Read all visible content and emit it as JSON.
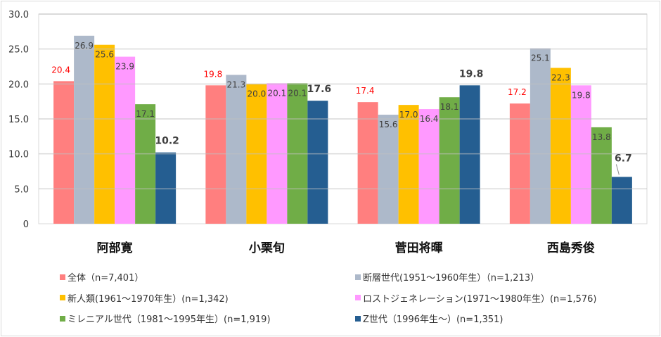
{
  "chart_data": {
    "type": "bar",
    "categories": [
      "阿部寛",
      "小栗旬",
      "菅田将暉",
      "西島秀俊"
    ],
    "ylim": [
      0,
      30
    ],
    "yticks": [
      "0",
      "5.0",
      "10.0",
      "15.0",
      "20.0",
      "25.0",
      "30.0"
    ],
    "grid": true,
    "legend_position": "bottom",
    "series": [
      {
        "name": "全体（n=7,401）",
        "color": "#ff7f7f",
        "label_color": "#ff0000",
        "values": [
          20.4,
          19.8,
          17.4,
          17.2
        ]
      },
      {
        "name": "断層世代(1951～1960年生）（n=1,213）",
        "color": "#adb9ca",
        "label_color": "#404040",
        "values": [
          26.9,
          21.3,
          15.6,
          25.1
        ]
      },
      {
        "name": "新人類(1961～1970年生）(n=1,342)",
        "color": "#ffc000",
        "label_color": "#404040",
        "values": [
          25.6,
          20.0,
          17.0,
          22.3
        ]
      },
      {
        "name": "ロストジェネレーション(1971～1980年生）(n=1,576)",
        "color": "#ff99ff",
        "label_color": "#404040",
        "values": [
          23.9,
          20.1,
          16.4,
          19.8
        ]
      },
      {
        "name": "ミレニアル世代（1981～1995年生）(n=1,919)",
        "color": "#70ad47",
        "label_color": "#404040",
        "values": [
          17.1,
          20.1,
          18.1,
          13.8
        ]
      },
      {
        "name": "Z世代（1996年生～）(n=1,351)",
        "color": "#255e91",
        "label_color": "#404040",
        "values": [
          10.2,
          17.6,
          19.8,
          6.7
        ]
      }
    ]
  }
}
